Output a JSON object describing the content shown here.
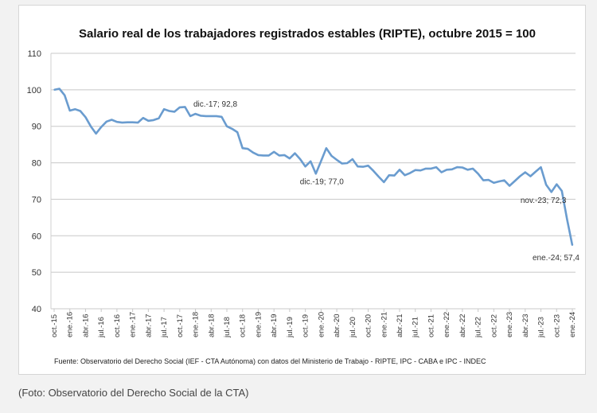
{
  "chart_data": {
    "type": "line",
    "title": "Salario real de los trabajadores registrados estables (RIPTE), octubre 2015 = 100",
    "source_note": "Fuente: Observatorio del Derecho Social (IEF - CTA Autónoma) con datos del Ministerio de Trabajo - RIPTE, IPC - CABA e IPC - INDEC",
    "xlabel": "",
    "ylabel": "",
    "ylim": [
      40,
      110
    ],
    "yticks": [
      40,
      50,
      60,
      70,
      80,
      90,
      100,
      110
    ],
    "grid": true,
    "legend": "none",
    "line_color": "#6a9ccf",
    "x_tick_labels": [
      "oct.-15",
      "ene.-16",
      "abr.-16",
      "jul.-16",
      "oct.-16",
      "ene.-17",
      "abr.-17",
      "jul.-17",
      "oct.-17",
      "ene.-18",
      "abr.-18",
      "jul.-18",
      "oct.-18",
      "ene.-19",
      "abr.-19",
      "jul.-19",
      "oct.-19",
      "ene.-20",
      "abr.-20",
      "jul.-20",
      "oct.-20",
      "ene.-21",
      "abr.-21",
      "jul.-21",
      "oct.-21",
      "ene.-22",
      "abr.-22",
      "jul.-22",
      "oct.-22",
      "ene.-23",
      "abr.-23",
      "jul.-23",
      "oct.-23",
      "ene.-24"
    ],
    "x_start": "oct.-15",
    "x_end": "ene.-24",
    "frequency": "monthly",
    "values": [
      100,
      100.3,
      98.5,
      94.3,
      94.7,
      94.2,
      92.5,
      90,
      88,
      89.8,
      91.3,
      91.8,
      91.2,
      91.0,
      91.1,
      91.1,
      91.0,
      92.3,
      91.5,
      91.7,
      92.2,
      94.7,
      94.2,
      94.0,
      95.2,
      95.3,
      92.8,
      93.4,
      92.9,
      92.8,
      92.8,
      92.8,
      92.6,
      90.0,
      89.3,
      88.4,
      84.0,
      83.8,
      82.8,
      82.1,
      82.0,
      82.0,
      83.0,
      82.0,
      82.1,
      81.2,
      82.6,
      81.0,
      79.0,
      80.4,
      77.0,
      80.5,
      84.0,
      81.9,
      80.8,
      79.8,
      79.9,
      81.0,
      79.0,
      78.9,
      79.2,
      77.8,
      76.2,
      74.7,
      76.6,
      76.5,
      78.1,
      76.6,
      77.2,
      78.0,
      77.9,
      78.4,
      78.4,
      78.8,
      77.4,
      78.1,
      78.2,
      78.8,
      78.7,
      78.1,
      78.4,
      77.0,
      75.2,
      75.3,
      74.5,
      74.9,
      75.2,
      73.7,
      75.0,
      76.3,
      77.4,
      76.3,
      77.6,
      78.8,
      74.0,
      72.0,
      74.1,
      72.3,
      64.5,
      57.4
    ],
    "annotations": [
      {
        "index": 26,
        "text": "dic.-17; 92,8"
      },
      {
        "index": 50,
        "text": "dic.-19; 77,0"
      },
      {
        "index": 97,
        "text": "nov.-23; 72,3"
      },
      {
        "index": 99,
        "text": "ene.-24; 57,4"
      }
    ]
  },
  "caption": "(Foto: Observatorio del Derecho Social de la CTA)"
}
